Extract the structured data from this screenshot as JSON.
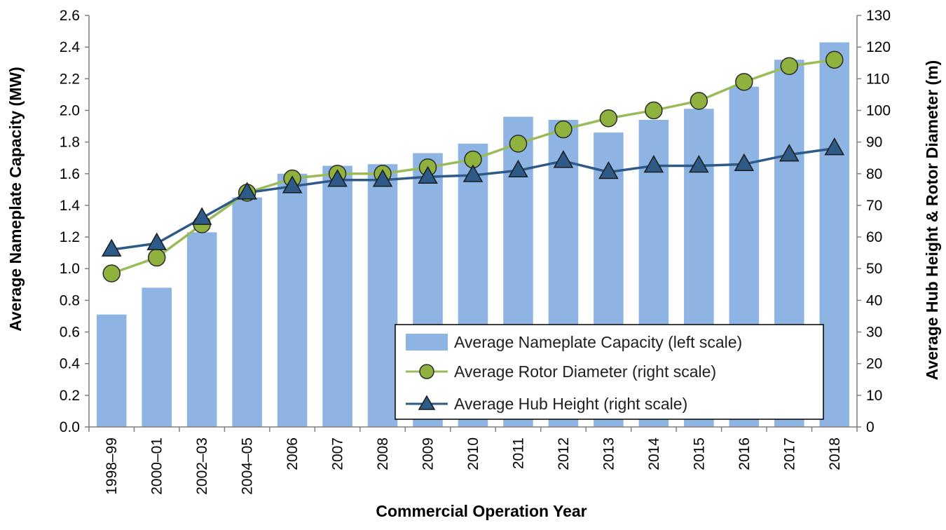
{
  "chart_data": {
    "type": "bar+line",
    "title": "",
    "categories": [
      "1998–99",
      "2000–01",
      "2002–03",
      "2004–05",
      "2006",
      "2007",
      "2008",
      "2009",
      "2010",
      "2011",
      "2012",
      "2013",
      "2014",
      "2015",
      "2016",
      "2017",
      "2018"
    ],
    "xlabel": "Commercial Operation Year",
    "ylabel_left": "Average Nameplate Capacity (MW)",
    "ylabel_right": "Average Hub Height & Rotor Diameter (m)",
    "ylim_left": [
      0,
      2.6
    ],
    "ylim_right": [
      0,
      130
    ],
    "yticks_left": [
      "0.0",
      "0.2",
      "0.4",
      "0.6",
      "0.8",
      "1.0",
      "1.2",
      "1.4",
      "1.6",
      "1.8",
      "2.0",
      "2.2",
      "2.4",
      "2.6"
    ],
    "yticks_right": [
      "0",
      "10",
      "20",
      "30",
      "40",
      "50",
      "60",
      "70",
      "80",
      "90",
      "100",
      "110",
      "120",
      "130"
    ],
    "grid": false,
    "legend_position": "bottom-right",
    "series": [
      {
        "name": "Average Nameplate Capacity (left scale)",
        "type": "bar",
        "axis": "left",
        "color": "#8DB4E2",
        "values": [
          0.71,
          0.88,
          1.23,
          1.45,
          1.6,
          1.65,
          1.66,
          1.73,
          1.79,
          1.96,
          1.94,
          1.86,
          1.94,
          2.01,
          2.15,
          2.32,
          2.43
        ]
      },
      {
        "name": "Average Rotor Diameter (right scale)",
        "type": "line",
        "axis": "right",
        "marker": "circle",
        "line_color": "#9BBB59",
        "marker_fill": "#8FB23E",
        "values": [
          48.5,
          53.5,
          64,
          74,
          78.5,
          80,
          80,
          82,
          84.5,
          89.5,
          94,
          97.5,
          100,
          103,
          109,
          114,
          116
        ]
      },
      {
        "name": "Average Hub Height (right scale)",
        "type": "line",
        "axis": "right",
        "marker": "triangle",
        "line_color": "#2E5A87",
        "marker_fill": "#2E5A87",
        "values": [
          56,
          58,
          66,
          74,
          76,
          78,
          78,
          79,
          79.5,
          81,
          84,
          80.5,
          82.5,
          82.5,
          83,
          86,
          88
        ]
      }
    ]
  }
}
